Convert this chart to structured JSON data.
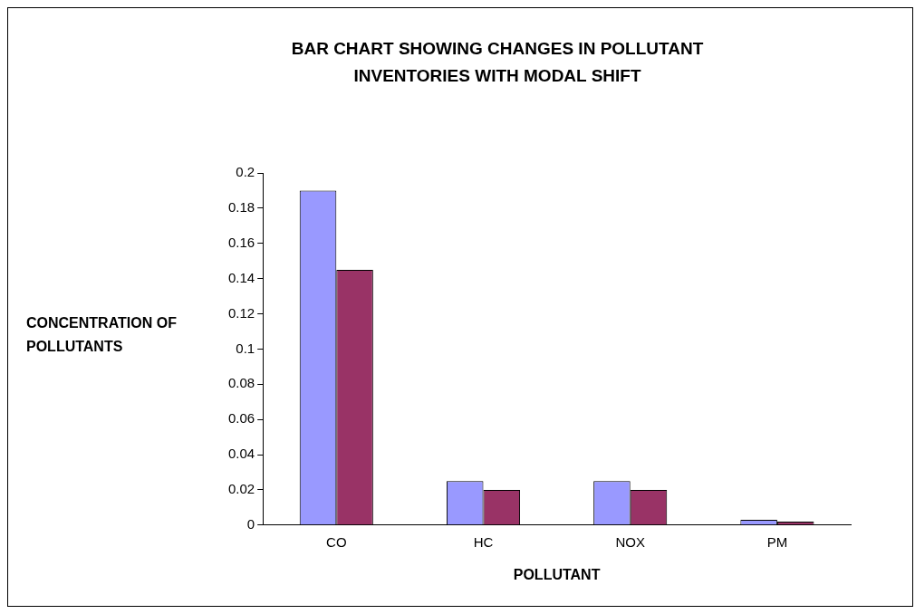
{
  "chart_data": {
    "type": "bar",
    "title": "BAR CHART SHOWING CHANGES IN POLLUTANT INVENTORIES  WITH MODAL SHIFT",
    "xlabel": "POLLUTANT",
    "ylabel": "CONCENTRATION OF POLLUTANTS",
    "categories": [
      "CO",
      "HC",
      "NOX",
      "PM"
    ],
    "series": [
      {
        "color": "#9999ff",
        "values": [
          0.19,
          0.025,
          0.025,
          0.003
        ]
      },
      {
        "color": "#993366",
        "values": [
          0.145,
          0.02,
          0.02,
          0.002
        ]
      }
    ],
    "ylim": [
      0,
      0.2
    ],
    "yticks": [
      0,
      0.02,
      0.04,
      0.06,
      0.08,
      0.1,
      0.12,
      0.14,
      0.16,
      0.18,
      0.2
    ],
    "grid": false,
    "legend": false
  }
}
